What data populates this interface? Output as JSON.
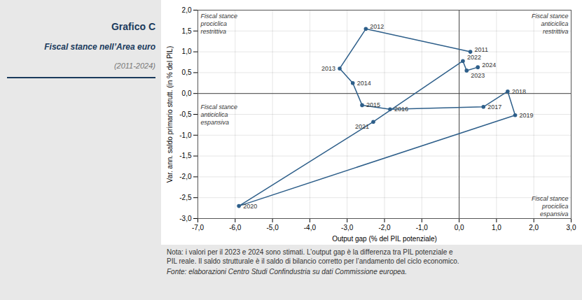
{
  "chart_data": {
    "type": "line",
    "marker": "circle",
    "line_style": "solid",
    "title": "Grafico C",
    "subtitle": [
      "Fiscal stance nell’Area euro",
      "(2011-2024)"
    ],
    "xlabel": "Output gap (% del PIL potenziale)",
    "ylabel": "Var. ann. saldo primario strutt. (in % del PIL)",
    "x": [
      0.3,
      -2.5,
      -3.2,
      -2.85,
      -2.6,
      -1.85,
      0.65,
      1.3,
      1.5,
      -5.9,
      -2.3,
      0.1,
      0.2,
      0.5
    ],
    "values": [
      1.0,
      1.55,
      0.6,
      0.25,
      -0.28,
      -0.38,
      -0.32,
      0.05,
      -0.52,
      -2.7,
      -0.68,
      0.78,
      0.55,
      0.63
    ],
    "point_labels": [
      "2011",
      "2012",
      "2013",
      "2014",
      "2015",
      "2016",
      "2017",
      "2018",
      "2019",
      "2020",
      "2021",
      "2022",
      "2023",
      "2024"
    ],
    "color": "#2e5f8a",
    "xlim": [
      -7.0,
      3.0
    ],
    "ylim": [
      -3.0,
      2.0
    ],
    "xticks": [
      {
        "value": -7.0,
        "label": "-7,0"
      },
      {
        "value": -6.0,
        "label": "-6,0"
      },
      {
        "value": -5.0,
        "label": "-5,0"
      },
      {
        "value": -4.0,
        "label": "-4,0"
      },
      {
        "value": -3.0,
        "label": "-3,0"
      },
      {
        "value": -2.0,
        "label": "-2,0"
      },
      {
        "value": -1.0,
        "label": "-1,0"
      },
      {
        "value": 0.0,
        "label": "0,0"
      },
      {
        "value": 1.0,
        "label": "1,0"
      },
      {
        "value": 2.0,
        "label": "2,0"
      },
      {
        "value": 3.0,
        "label": "3,0"
      }
    ],
    "yticks": [
      {
        "value": -3.0,
        "label": "-3,0"
      },
      {
        "value": -2.5,
        "label": "-2,5"
      },
      {
        "value": -2.0,
        "label": "-2,0"
      },
      {
        "value": -1.5,
        "label": "-1,5"
      },
      {
        "value": -1.0,
        "label": "-1,0"
      },
      {
        "value": -0.5,
        "label": "-0,5"
      },
      {
        "value": 0.0,
        "label": "0,0"
      },
      {
        "value": 0.5,
        "label": "0,5"
      },
      {
        "value": 1.0,
        "label": "1,0"
      },
      {
        "value": 1.5,
        "label": "1,5"
      },
      {
        "value": 2.0,
        "label": "2,0"
      }
    ],
    "grid": true,
    "annotations": [
      "Fiscal stance\nprociclica\nrestrittiva",
      "Fiscal stance\nanticiclica\nrestrittiva",
      "Fiscal stance\nanticiclica\nespansiva",
      "Fiscal stance\nprociclica\nespansiva"
    ],
    "note": "Nota: i valori per il 2023 e 2024 sono stimati. L’output gap è la differenza tra PIL potenziale e\nPIL reale. Il saldo strutturale è il saldo di bilancio corretto per l’andamento del ciclo economico.",
    "source": "Fonte: elaborazioni Centro Studi Confindustria su dati Commissione europea."
  }
}
